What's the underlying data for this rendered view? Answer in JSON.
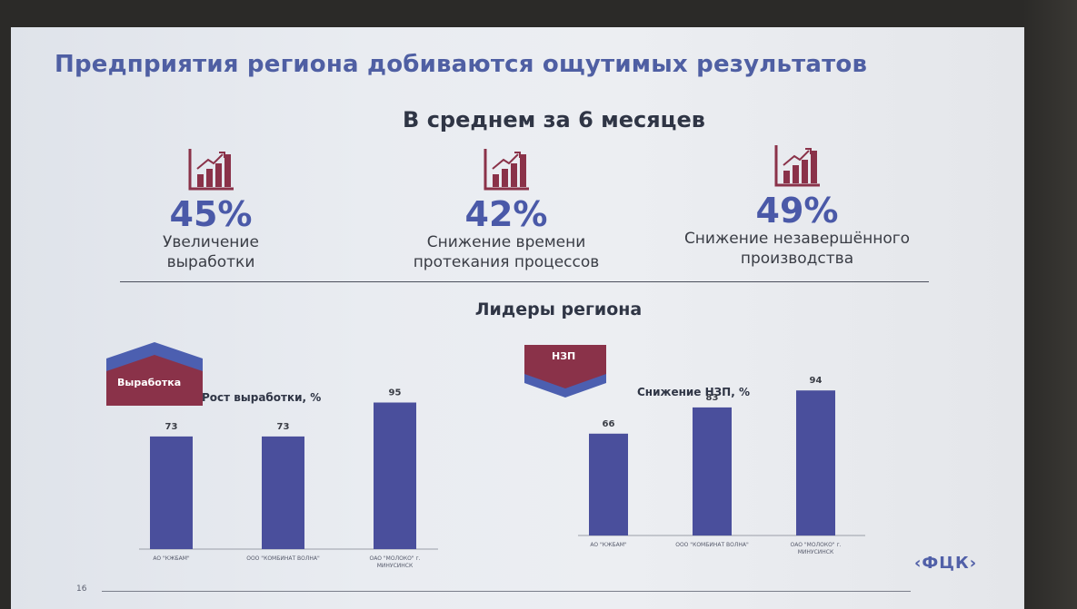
{
  "slide": {
    "title": "Предприятия региона добиваются ощутимых результатов",
    "subtitle": "В среднем за 6 месяцев",
    "page_number": "16",
    "logo": "ФЦК"
  },
  "metrics": [
    {
      "value": "45%",
      "line1": "Увеличение",
      "line2": "выработки",
      "icon": "growth-chart-icon"
    },
    {
      "value": "42%",
      "line1": "Снижение времени",
      "line2": "протекания процессов",
      "icon": "growth-chart-icon"
    },
    {
      "value": "49%",
      "line1": "Снижение незавершённого",
      "line2": "производства",
      "icon": "growth-chart-icon"
    }
  ],
  "leaders_heading": "Лидеры региона",
  "badges": {
    "left": "Выработка",
    "right": "НЗП"
  },
  "colors": {
    "bar": "#4a4f9c",
    "accent_red": "#8a3249",
    "accent_blue": "#4c5fb0"
  },
  "chart_data": [
    {
      "type": "bar",
      "title": "Рост выработки, %",
      "categories": [
        "АО \"КЖБАМ\"",
        "ООО \"КОМБИНАТ ВОЛНА\"",
        "ОАО \"МОЛОКО\" г. МИНУСИНСК"
      ],
      "values": [
        73,
        73,
        95
      ],
      "data_labels": [
        "73",
        "73",
        "95"
      ],
      "ylim": [
        0,
        100
      ]
    },
    {
      "type": "bar",
      "title": "Снижение НЗП, %",
      "categories": [
        "АО \"КЖБАМ\"",
        "ООО \"КОМБИНАТ ВОЛНА\"",
        "ОАО \"МОЛОКО\" г. МИНУСИНСК"
      ],
      "values": [
        66,
        83,
        94
      ],
      "data_labels": [
        "66",
        "83",
        "94"
      ],
      "ylim": [
        0,
        100
      ]
    }
  ]
}
